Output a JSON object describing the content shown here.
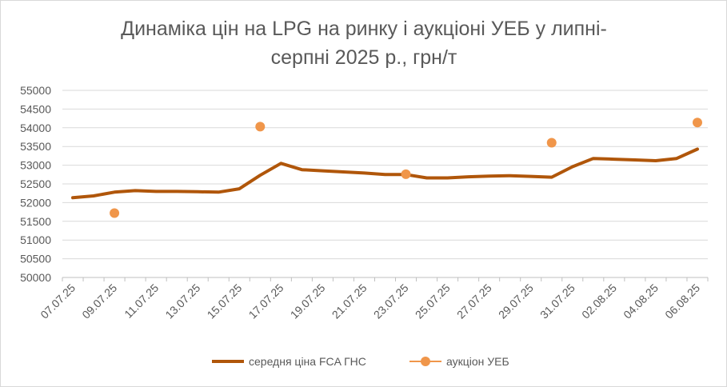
{
  "chart_data": {
    "type": "line",
    "title": "Динаміка цін на LPG на ринку і аукціоні УЕБ у липні-серпні 2025 р., грн/т",
    "title_lines": [
      "Динаміка цін на LPG на ринку і аукціоні УЕБ у липні-",
      "серпні 2025 р., грн/т"
    ],
    "xlabel": "",
    "ylabel": "",
    "ylim": [
      50000,
      55000
    ],
    "yticks": [
      50000,
      50500,
      51000,
      51500,
      52000,
      52500,
      53000,
      53500,
      54000,
      54500,
      55000
    ],
    "x_tick_labels": [
      "07.07.25",
      "09.07.25",
      "11.07.25",
      "13.07.25",
      "15.07.25",
      "17.07.25",
      "19.07.25",
      "21.07.25",
      "23.07.25",
      "25.07.25",
      "27.07.25",
      "29.07.25",
      "31.07.25",
      "02.08.25",
      "04.08.25",
      "06.08.25"
    ],
    "x_dates": [
      "07.07",
      "08.07",
      "09.07",
      "10.07",
      "11.07",
      "12.07",
      "13.07",
      "14.07",
      "15.07",
      "16.07",
      "17.07",
      "18.07",
      "19.07",
      "20.07",
      "21.07",
      "22.07",
      "23.07",
      "24.07",
      "25.07",
      "26.07",
      "27.07",
      "28.07",
      "29.07",
      "30.07",
      "31.07",
      "01.08",
      "02.08",
      "03.08",
      "04.08",
      "05.08",
      "06.08"
    ],
    "grid": true,
    "legend_position": "bottom",
    "series": [
      {
        "name": "середня ціна FCA ГНС",
        "kind": "line",
        "color": "#b0560a",
        "points": [
          [
            "07.07",
            52130
          ],
          [
            "08.07",
            52180
          ],
          [
            "09.07",
            52280
          ],
          [
            "10.07",
            52320
          ],
          [
            "11.07",
            52300
          ],
          [
            "12.07",
            52300
          ],
          [
            "13.07",
            52290
          ],
          [
            "14.07",
            52280
          ],
          [
            "15.07",
            52370
          ],
          [
            "16.07",
            52730
          ],
          [
            "17.07",
            53050
          ],
          [
            "18.07",
            52880
          ],
          [
            "19.07",
            52850
          ],
          [
            "20.07",
            52820
          ],
          [
            "21.07",
            52790
          ],
          [
            "22.07",
            52750
          ],
          [
            "23.07",
            52750
          ],
          [
            "24.07",
            52660
          ],
          [
            "25.07",
            52660
          ],
          [
            "26.07",
            52690
          ],
          [
            "27.07",
            52710
          ],
          [
            "28.07",
            52720
          ],
          [
            "29.07",
            52700
          ],
          [
            "30.07",
            52680
          ],
          [
            "31.07",
            52960
          ],
          [
            "01.08",
            53180
          ],
          [
            "02.08",
            53160
          ],
          [
            "03.08",
            53140
          ],
          [
            "04.08",
            53120
          ],
          [
            "05.08",
            53180
          ],
          [
            "06.08",
            53430
          ]
        ]
      },
      {
        "name": "аукціон УЕБ",
        "kind": "scatter",
        "color": "#f0964a",
        "points": [
          [
            "09.07",
            51720
          ],
          [
            "16.07",
            54030
          ],
          [
            "23.07",
            52760
          ],
          [
            "30.07",
            53600
          ],
          [
            "06.08",
            54140
          ]
        ]
      }
    ]
  }
}
